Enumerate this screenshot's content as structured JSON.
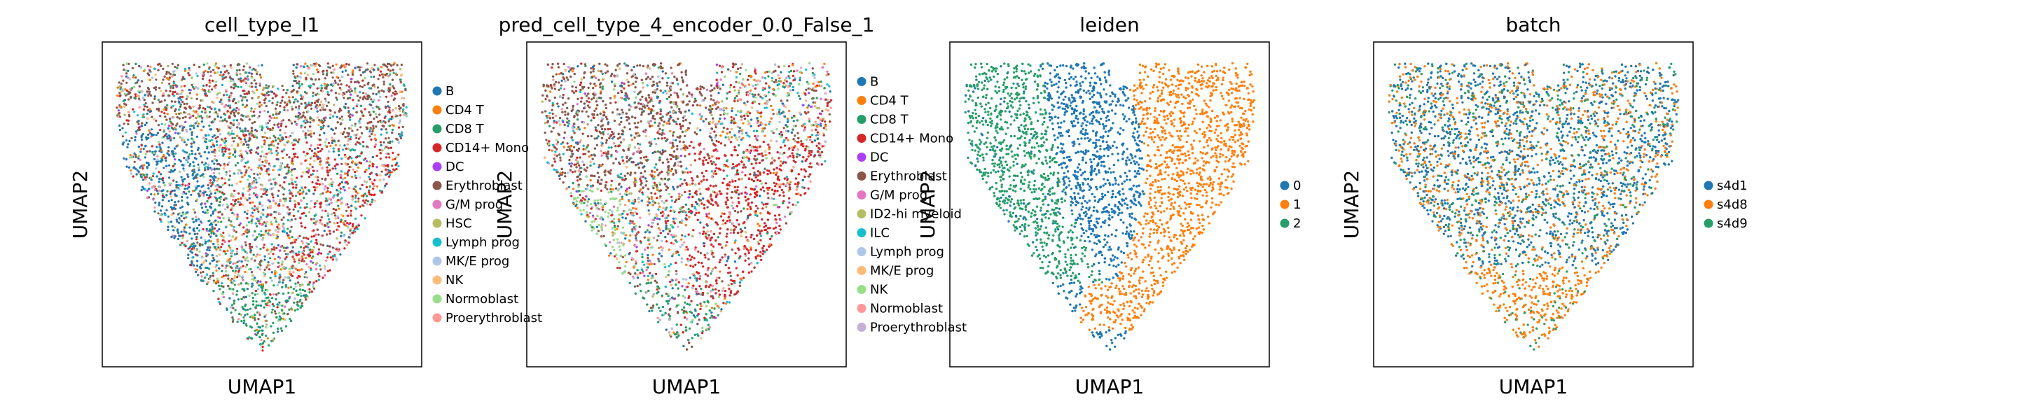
{
  "chart_data": [
    {
      "type": "scatter",
      "title": "cell_type_l1",
      "xlabel": "UMAP1",
      "ylabel": "UMAP2",
      "grid": false,
      "legend": "right",
      "series": [
        {
          "name": "B",
          "color": "#1f77b4"
        },
        {
          "name": "CD4 T",
          "color": "#ff7f0e"
        },
        {
          "name": "CD8 T",
          "color": "#279e68"
        },
        {
          "name": "CD14+ Mono",
          "color": "#d62728"
        },
        {
          "name": "DC",
          "color": "#aa40fc"
        },
        {
          "name": "Erythroblast",
          "color": "#8c564b"
        },
        {
          "name": "G/M prog",
          "color": "#e377c2"
        },
        {
          "name": "HSC",
          "color": "#b5bd61"
        },
        {
          "name": "Lymph prog",
          "color": "#17becf"
        },
        {
          "name": "MK/E prog",
          "color": "#aec7e8"
        },
        {
          "name": "NK",
          "color": "#ffbb78"
        },
        {
          "name": "Normoblast",
          "color": "#98df8a"
        },
        {
          "name": "Proerythroblast",
          "color": "#ff9896"
        }
      ]
    },
    {
      "type": "scatter",
      "title": "pred_cell_type_4_encoder_0.0_False_1",
      "xlabel": "UMAP1",
      "ylabel": "UMAP2",
      "grid": false,
      "legend": "right",
      "series": [
        {
          "name": "B",
          "color": "#1f77b4"
        },
        {
          "name": "CD4 T",
          "color": "#ff7f0e"
        },
        {
          "name": "CD8 T",
          "color": "#279e68"
        },
        {
          "name": "CD14+ Mono",
          "color": "#d62728"
        },
        {
          "name": "DC",
          "color": "#aa40fc"
        },
        {
          "name": "Erythroblast",
          "color": "#8c564b"
        },
        {
          "name": "G/M prog",
          "color": "#e377c2"
        },
        {
          "name": "ID2-hi myeloid",
          "color": "#b5bd61"
        },
        {
          "name": "ILC",
          "color": "#17becf"
        },
        {
          "name": "Lymph prog",
          "color": "#aec7e8"
        },
        {
          "name": "MK/E prog",
          "color": "#ffbb78"
        },
        {
          "name": "NK",
          "color": "#98df8a"
        },
        {
          "name": "Normoblast",
          "color": "#ff9896"
        },
        {
          "name": "Proerythroblast",
          "color": "#c5b0d5"
        }
      ]
    },
    {
      "type": "scatter",
      "title": "leiden",
      "xlabel": "UMAP1",
      "ylabel": "UMAP2",
      "grid": false,
      "legend": "right",
      "series": [
        {
          "name": "0",
          "color": "#1f77b4"
        },
        {
          "name": "1",
          "color": "#ff7f0e"
        },
        {
          "name": "2",
          "color": "#279e68"
        }
      ]
    },
    {
      "type": "scatter",
      "title": "batch",
      "xlabel": "UMAP1",
      "ylabel": "UMAP2",
      "grid": false,
      "legend": "right",
      "series": [
        {
          "name": "s4d1",
          "color": "#1f77b4"
        },
        {
          "name": "s4d8",
          "color": "#ff7f0e"
        },
        {
          "name": "s4d9",
          "color": "#279e68"
        }
      ]
    }
  ]
}
